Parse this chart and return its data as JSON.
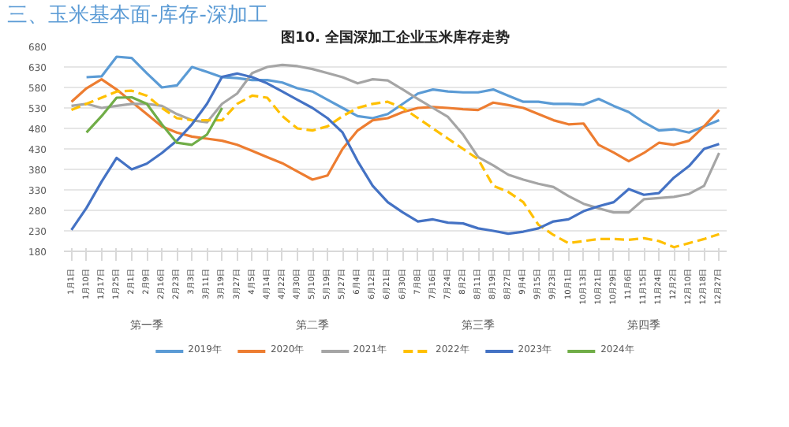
{
  "chart_data": {
    "type": "line",
    "subtitle": "三、玉米基本面-库存-深加工",
    "title": "图10. 全国深加工企业玉米库存走势",
    "categories": [
      "1月1日",
      "1月10日",
      "1月17日",
      "1月25日",
      "2月1日",
      "2月9日",
      "2月16日",
      "2月23日",
      "3月3日",
      "3月11日",
      "3月19日",
      "3月27日",
      "4月5日",
      "4月14日",
      "4月22日",
      "4月30日",
      "5月10日",
      "5月19日",
      "5月27日",
      "6月4日",
      "6月12日",
      "6月21日",
      "6月30日",
      "7月8日",
      "7月16日",
      "7月24日",
      "8月2日",
      "8月11日",
      "8月19日",
      "8月27日",
      "9月4日",
      "9月15日",
      "9月23日",
      "10月1日",
      "10月13日",
      "10月21日",
      "10月29日",
      "11月6日",
      "11月15日",
      "11月24日",
      "12月2日",
      "12月10日",
      "12月18日",
      "12月27日"
    ],
    "annotations": [
      "第一季",
      "第二季",
      "第三季",
      "第四季"
    ],
    "ylim": [
      180,
      680
    ],
    "yticks": [
      180,
      230,
      280,
      330,
      380,
      430,
      480,
      530,
      580,
      630,
      680
    ],
    "grid": "y",
    "legend": "bottom",
    "marker": "none",
    "series": [
      {
        "name": "2019年",
        "color": "#5b9bd5",
        "line_style": "solid",
        "values": [
          null,
          605,
          607,
          655,
          652,
          615,
          580,
          585,
          630,
          618,
          605,
          603,
          598,
          598,
          592,
          578,
          570,
          550,
          530,
          510,
          505,
          515,
          540,
          565,
          575,
          570,
          568,
          568,
          575,
          560,
          545,
          545,
          540,
          540,
          538,
          552,
          535,
          520,
          495,
          475,
          478,
          470,
          485,
          500
        ]
      },
      {
        "name": "2020年",
        "color": "#ed7d31",
        "line_style": "solid",
        "values": [
          545,
          578,
          600,
          575,
          545,
          515,
          485,
          470,
          460,
          455,
          450,
          440,
          425,
          410,
          395,
          375,
          355,
          365,
          430,
          475,
          500,
          505,
          520,
          530,
          532,
          530,
          527,
          525,
          543,
          537,
          530,
          515,
          500,
          490,
          492,
          440,
          421,
          400,
          420,
          445,
          440,
          450,
          485,
          525
        ]
      },
      {
        "name": "2021年",
        "color": "#a5a5a5",
        "line_style": "solid",
        "values": [
          535,
          540,
          530,
          535,
          540,
          540,
          535,
          515,
          500,
          495,
          540,
          565,
          615,
          630,
          635,
          632,
          625,
          615,
          605,
          590,
          600,
          597,
          575,
          552,
          530,
          508,
          465,
          410,
          390,
          367,
          355,
          345,
          337,
          315,
          296,
          285,
          275,
          275,
          307,
          310,
          313,
          320,
          340,
          420
        ]
      },
      {
        "name": "2022年",
        "color": "#ffc000",
        "line_style": "dashed",
        "values": [
          525,
          540,
          555,
          570,
          572,
          560,
          530,
          505,
          500,
          500,
          500,
          540,
          560,
          555,
          510,
          480,
          475,
          485,
          510,
          530,
          540,
          545,
          530,
          505,
          480,
          455,
          430,
          405,
          340,
          325,
          300,
          245,
          220,
          200,
          205,
          210,
          210,
          208,
          212,
          205,
          190,
          200,
          210,
          222
        ]
      },
      {
        "name": "2023年",
        "color": "#4472c4",
        "line_style": "solid",
        "values": [
          232,
          286,
          350,
          408,
          380,
          394,
          420,
          450,
          490,
          540,
          606,
          614,
          605,
          590,
          570,
          550,
          530,
          505,
          470,
          400,
          340,
          300,
          275,
          253,
          258,
          250,
          248,
          236,
          230,
          223,
          228,
          236,
          253,
          258,
          278,
          290,
          300,
          332,
          318,
          322,
          360,
          388,
          430,
          442
        ]
      },
      {
        "name": "2024年",
        "color": "#70ad47",
        "line_style": "solid",
        "values": [
          null,
          470,
          510,
          555,
          556,
          540,
          490,
          445,
          440,
          465,
          530,
          null,
          null,
          null,
          null,
          null,
          null,
          null,
          null,
          null,
          null,
          null,
          null,
          null,
          null,
          null,
          null,
          null,
          null,
          null,
          null,
          null,
          null,
          null,
          null,
          null,
          null,
          null,
          null,
          null,
          null,
          null,
          null,
          null
        ]
      }
    ]
  }
}
